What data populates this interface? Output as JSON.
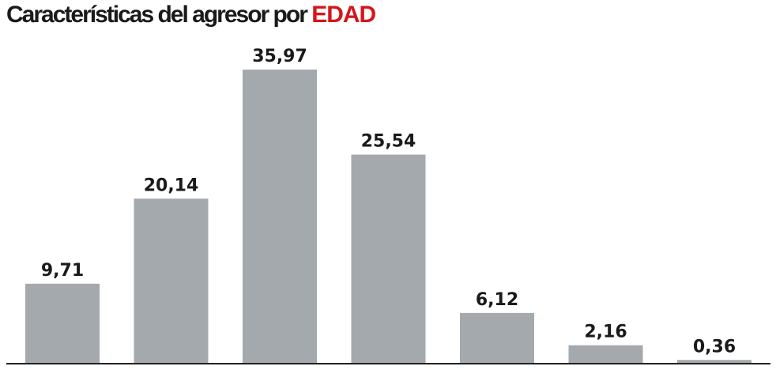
{
  "chart_data": {
    "type": "bar",
    "title": "Características del agresor por ",
    "title_highlight": "EDAD",
    "values": [
      9.71,
      20.14,
      35.97,
      25.54,
      6.12,
      2.16,
      0.36
    ],
    "value_labels": [
      "9,71",
      "20,14",
      "35,97",
      "25,54",
      "6,12",
      "2,16",
      "0,36"
    ],
    "ylim": [
      0,
      36
    ],
    "grid": false,
    "colors": {
      "bar": "#a4a9ad",
      "title_highlight": "#d4161c",
      "baseline": "#222222"
    }
  }
}
